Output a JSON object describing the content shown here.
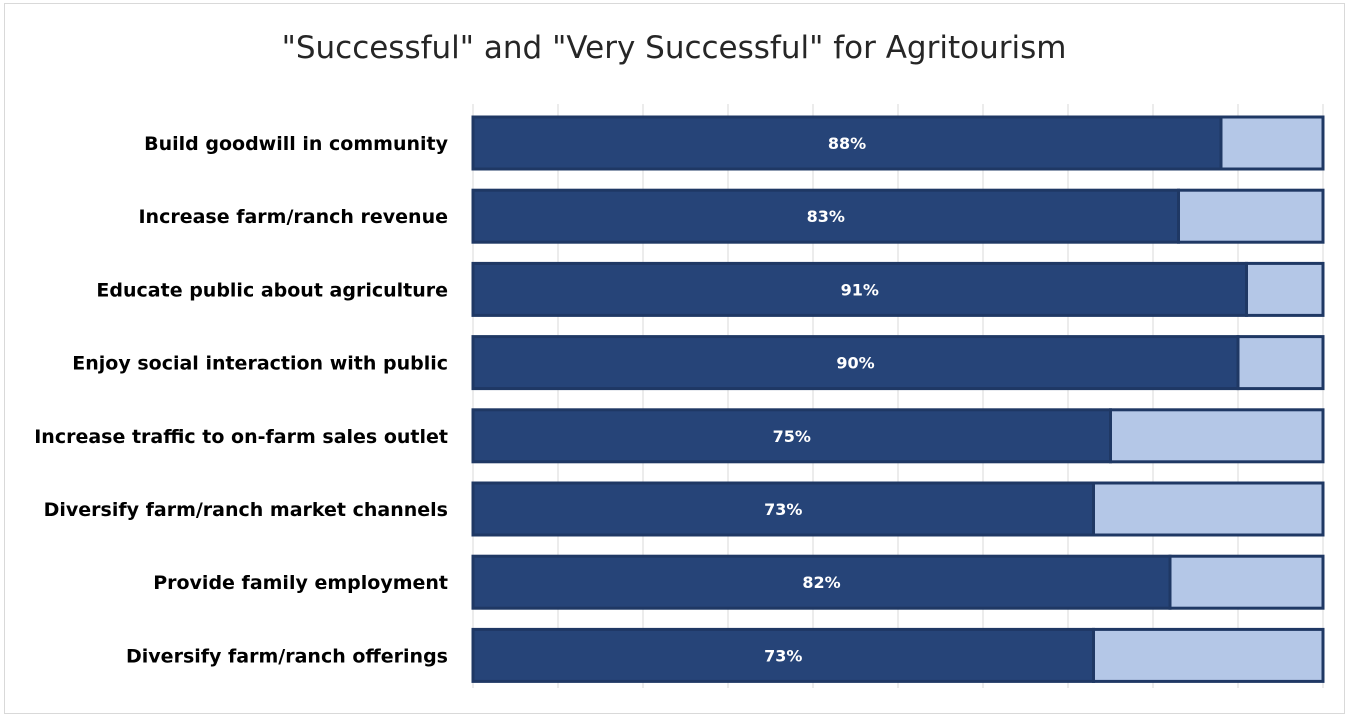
{
  "chart_data": {
    "type": "bar",
    "orientation": "horizontal",
    "stacked": true,
    "title": "\"Successful\" and \"Very Successful\" for Agritourism",
    "categories": [
      "Build goodwill in community",
      "Increase farm/ranch revenue",
      "Educate public about agriculture",
      "Enjoy social interaction with public",
      "Increase traffic to on-farm sales outlet",
      "Diversify farm/ranch market channels",
      "Provide family employment",
      "Diversify farm/ranch offerings"
    ],
    "series": [
      {
        "values": [
          88,
          83,
          91,
          90,
          75,
          73,
          82,
          73
        ],
        "color": "#264478",
        "labels": [
          "88%",
          "83%",
          "91%",
          "90%",
          "75%",
          "73%",
          "82%",
          "73%"
        ]
      },
      {
        "values": [
          12,
          17,
          9,
          10,
          25,
          27,
          18,
          27
        ],
        "color": "#b4c7e7"
      }
    ],
    "xlim": [
      0,
      100
    ],
    "grid": true,
    "grid_divisions": 10,
    "legend": "none",
    "border_color": "#1f3864"
  }
}
